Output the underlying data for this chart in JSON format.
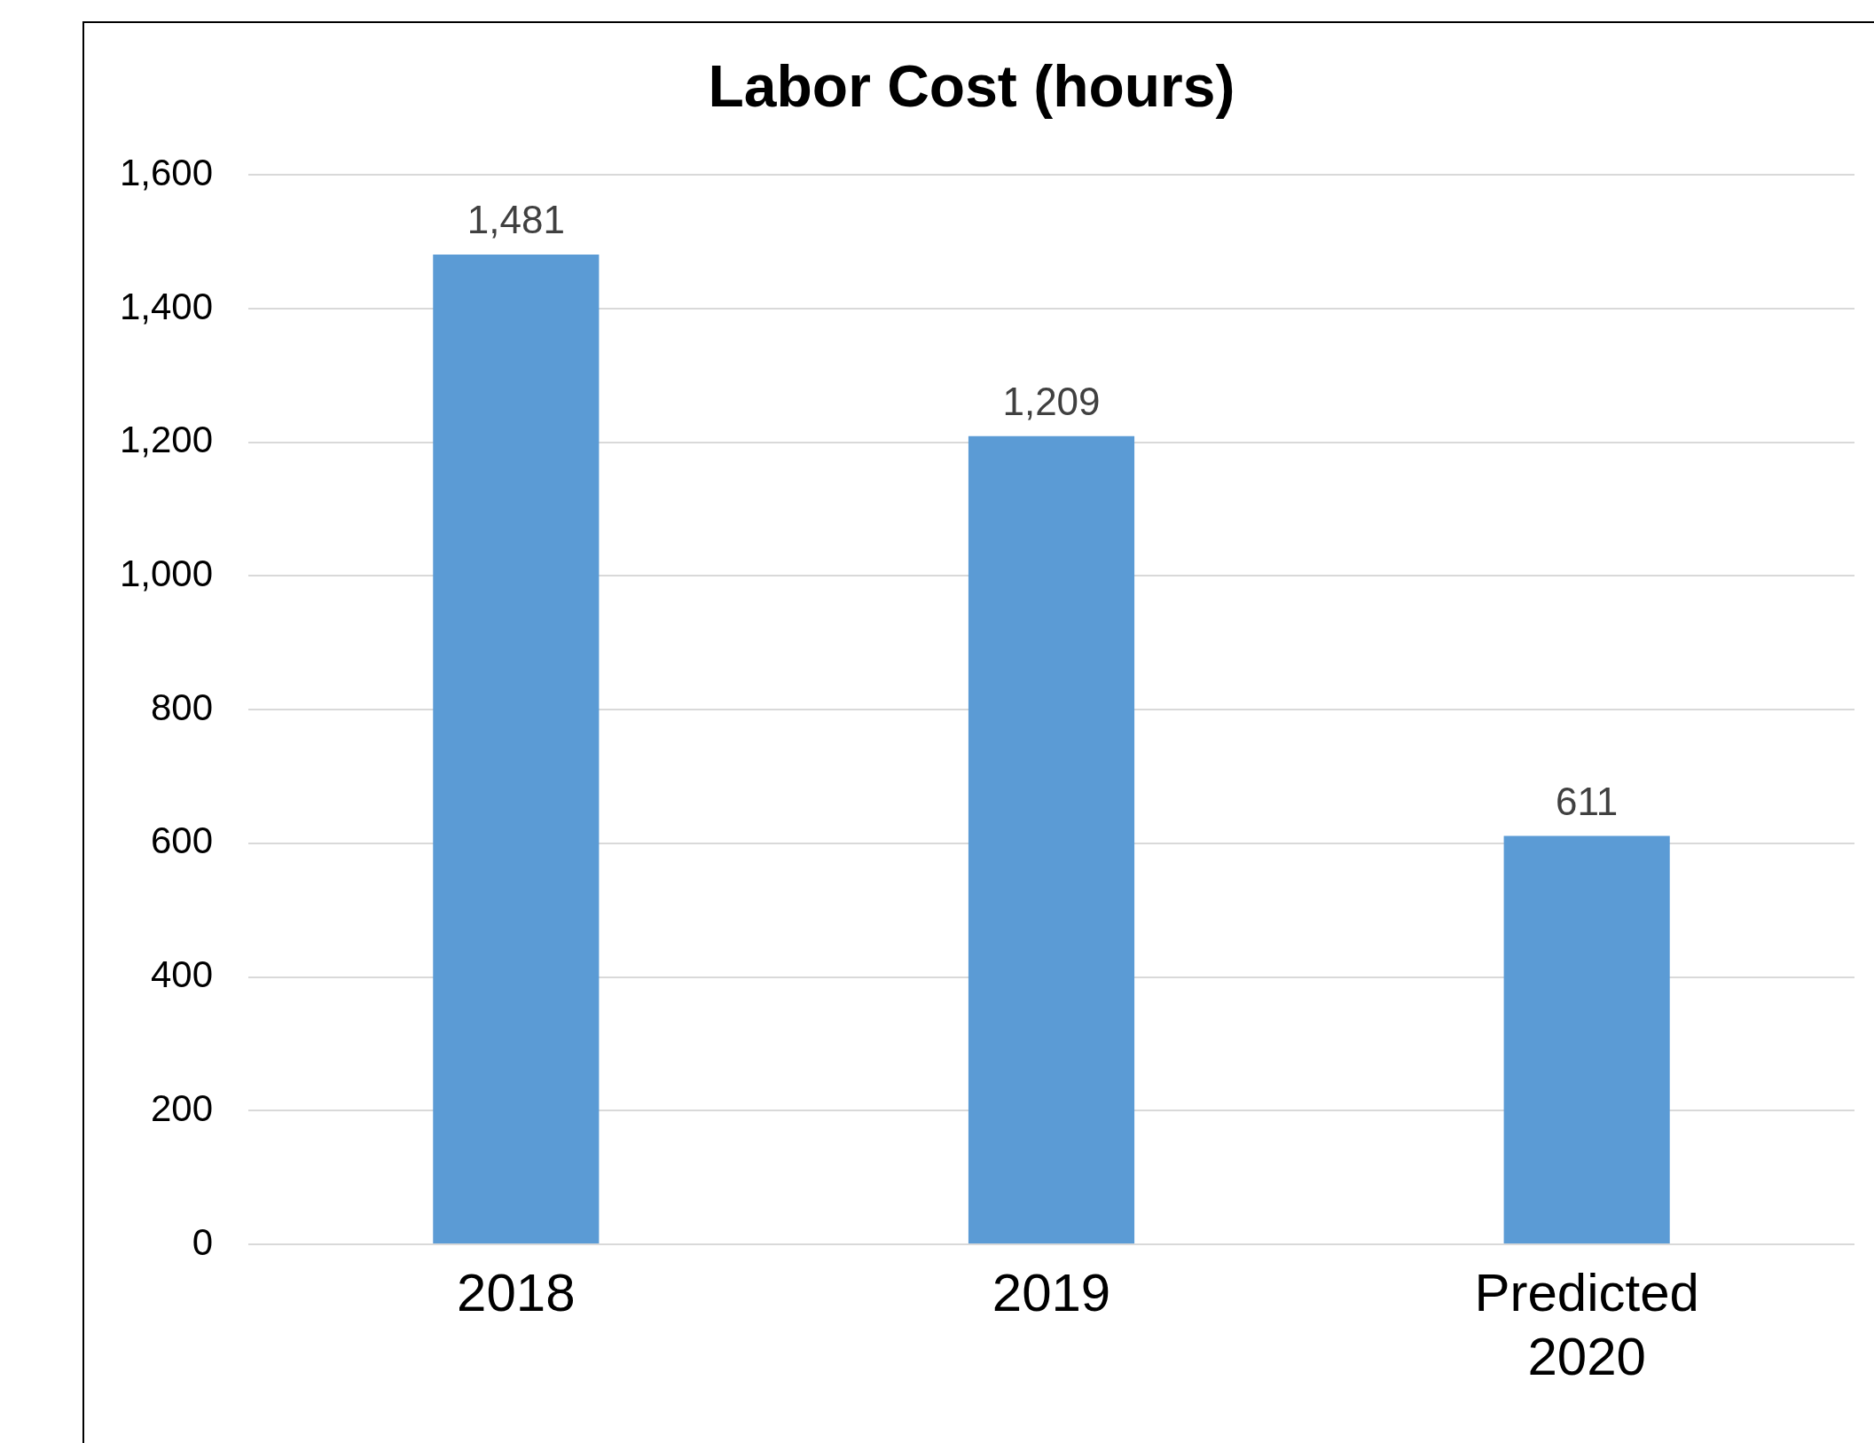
{
  "chart_data": {
    "type": "bar",
    "title": "Labor Cost (hours)",
    "categories": [
      "2018",
      "2019",
      "Predicted\n2020"
    ],
    "values": [
      1481,
      1209,
      611
    ],
    "color": "#5b9bd5",
    "value_labels": [
      "1,481",
      "1,209",
      "611"
    ],
    "ylim": [
      0,
      1600
    ],
    "yticks": [
      0,
      200,
      400,
      600,
      800,
      {
        "value": 1000,
        "label": "1,000"
      },
      {
        "value": 1200,
        "label": "1,200"
      },
      {
        "value": 1400,
        "label": "1,400"
      },
      {
        "value": 1600,
        "label": "1,600"
      }
    ],
    "grid": "y",
    "legend": false
  }
}
